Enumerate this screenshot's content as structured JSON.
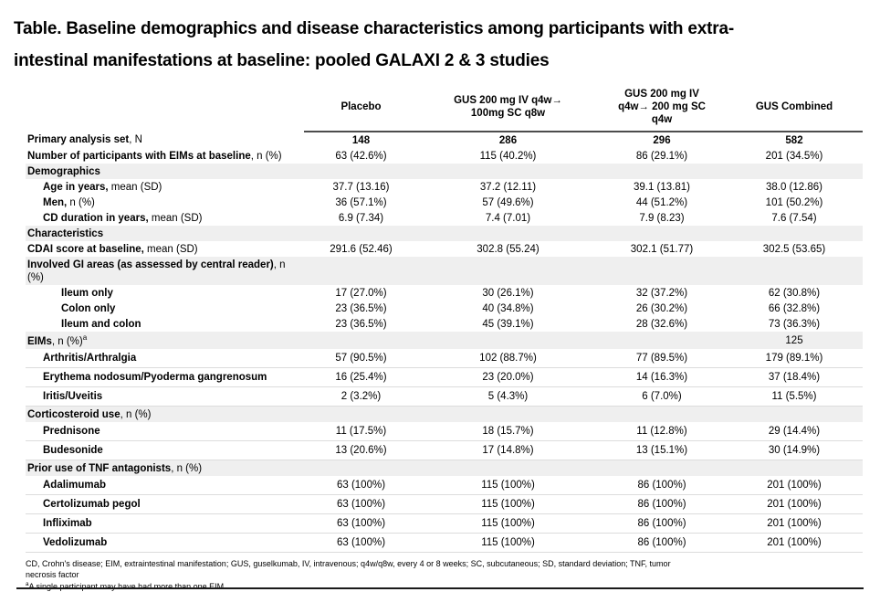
{
  "title": "Table. Baseline demographics and disease characteristics among participants with extra-\nintestinal manifestations at baseline: pooled GALAXI 2 & 3 studies",
  "table": {
    "columns": [
      "Placebo",
      "GUS 200 mg IV q4w→\n100mg SC q8w",
      "GUS 200 mg IV\nq4w→ 200 mg SC\nq4w",
      "GUS Combined"
    ],
    "rows": [
      {
        "label_bold": "Primary analysis set",
        "label_rest": ", N",
        "indent": 0,
        "bold_values": true,
        "values": [
          "148",
          "286",
          "296",
          "582"
        ]
      },
      {
        "label_bold": "Number of participants with EIMs at baseline",
        "label_rest": ", n (%)",
        "indent": 0,
        "values": [
          "63 (42.6%)",
          "115 (40.2%)",
          "86 (29.1%)",
          "201 (34.5%)"
        ]
      },
      {
        "label_bold": "Demographics",
        "label_rest": "",
        "section": true,
        "indent": 0,
        "values": [
          "",
          "",
          "",
          ""
        ]
      },
      {
        "label_bold": "Age in years,",
        "label_rest": " mean (SD)",
        "indent": 1,
        "values": [
          "37.7 (13.16)",
          "37.2 (12.11)",
          "39.1 (13.81)",
          "38.0 (12.86)"
        ]
      },
      {
        "label_bold": "Men,",
        "label_rest": " n (%)",
        "indent": 1,
        "values": [
          "36 (57.1%)",
          "57 (49.6%)",
          "44 (51.2%)",
          "101 (50.2%)"
        ]
      },
      {
        "label_bold": "CD duration in years,",
        "label_rest": " mean (SD)",
        "indent": 1,
        "values": [
          "6.9 (7.34)",
          "7.4 (7.01)",
          "7.9 (8.23)",
          "7.6 (7.54)"
        ]
      },
      {
        "label_bold": "Characteristics",
        "label_rest": "",
        "section": true,
        "indent": 0,
        "values": [
          "",
          "",
          "",
          ""
        ]
      },
      {
        "label_bold": "CDAI score at baseline,",
        "label_rest": " mean (SD)",
        "indent": 0,
        "values": [
          "291.6 (52.46)",
          "302.8 (55.24)",
          "302.1 (51.77)",
          "302.5 (53.65)"
        ]
      },
      {
        "label_bold": "Involved GI areas (as assessed by central reader)",
        "label_rest": ", n (%)",
        "section": true,
        "indent": 0,
        "values": [
          "",
          "",
          "",
          ""
        ]
      },
      {
        "label_bold": "Ileum only",
        "label_rest": "",
        "indent": 2,
        "values": [
          "17 (27.0%)",
          "30 (26.1%)",
          "32 (37.2%)",
          "62 (30.8%)"
        ]
      },
      {
        "label_bold": "Colon only",
        "label_rest": "",
        "indent": 2,
        "values": [
          "23 (36.5%)",
          "40 (34.8%)",
          "26 (30.2%)",
          "66 (32.8%)"
        ]
      },
      {
        "label_bold": "Ileum and colon",
        "label_rest": "",
        "indent": 2,
        "values": [
          "23 (36.5%)",
          "45 (39.1%)",
          "28 (32.6%)",
          "73 (36.3%)"
        ]
      },
      {
        "label_bold": "EIMs",
        "label_rest": ", n (%)",
        "sup": "a",
        "section": true,
        "indent": 0,
        "values": [
          "",
          "",
          "",
          "125"
        ]
      },
      {
        "label_bold": "Arthritis/Arthralgia",
        "label_rest": "",
        "indent": 1,
        "sep": true,
        "values": [
          "57 (90.5%)",
          "102 (88.7%)",
          "77 (89.5%)",
          "179 (89.1%)"
        ]
      },
      {
        "label_bold": "Erythema nodosum/Pyoderma gangrenosum",
        "label_rest": "",
        "indent": 1,
        "sep": true,
        "values": [
          "16 (25.4%)",
          "23 (20.0%)",
          "14 (16.3%)",
          "37 (18.4%)"
        ]
      },
      {
        "label_bold": "Iritis/Uveitis",
        "label_rest": "",
        "indent": 1,
        "sep": true,
        "values": [
          "2 (3.2%)",
          "5 (4.3%)",
          "6 (7.0%)",
          "11 (5.5%)"
        ]
      },
      {
        "label_bold": "Corticosteroid use",
        "label_rest": ", n (%)",
        "section": true,
        "indent": 0,
        "values": [
          "",
          "",
          "",
          ""
        ]
      },
      {
        "label_bold": "Prednisone",
        "label_rest": "",
        "indent": 1,
        "sep": true,
        "values": [
          "11 (17.5%)",
          "18 (15.7%)",
          "11 (12.8%)",
          "29 (14.4%)"
        ]
      },
      {
        "label_bold": "Budesonide",
        "label_rest": "",
        "indent": 1,
        "sep": true,
        "values": [
          "13 (20.6%)",
          "17 (14.8%)",
          "13 (15.1%)",
          "30 (14.9%)"
        ]
      },
      {
        "label_bold": "Prior use of TNF antagonists",
        "label_rest": ", n (%)",
        "section": true,
        "indent": 0,
        "values": [
          "",
          "",
          "",
          ""
        ]
      },
      {
        "label_bold": "Adalimumab",
        "label_rest": "",
        "indent": 1,
        "sep": true,
        "values": [
          "63 (100%)",
          "115 (100%)",
          "86 (100%)",
          "201 (100%)"
        ]
      },
      {
        "label_bold": "Certolizumab pegol",
        "label_rest": "",
        "indent": 1,
        "sep": true,
        "values": [
          "63 (100%)",
          "115 (100%)",
          "86 (100%)",
          "201 (100%)"
        ]
      },
      {
        "label_bold": "Infliximab",
        "label_rest": "",
        "indent": 1,
        "sep": true,
        "values": [
          "63 (100%)",
          "115 (100%)",
          "86 (100%)",
          "201 (100%)"
        ]
      },
      {
        "label_bold": "Vedolizumab",
        "label_rest": "",
        "indent": 1,
        "sep": true,
        "values": [
          "63 (100%)",
          "115 (100%)",
          "86 (100%)",
          "201 (100%)"
        ]
      }
    ]
  },
  "footnotes": {
    "abbreviations": "CD, Crohn's disease; EIM, extraintestinal manifestation; GUS, guselkumab, IV, intravenous; q4w/q8w, every 4 or 8 weeks; SC, subcutaneous; SD, standard deviation; TNF, tumor\nnecrosis factor",
    "a_sup": "a",
    "a_text": "A single participant may have had more than one EIM"
  },
  "colors": {
    "section_shade": "#efefef",
    "header_rule": "#4d4d4d",
    "row_separator": "#dcdcdc",
    "bottom_rule": "#1a1a1a",
    "text": "#000000"
  }
}
